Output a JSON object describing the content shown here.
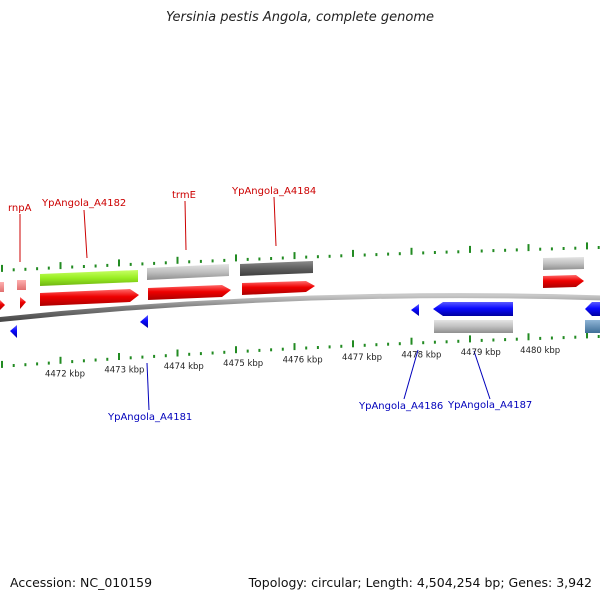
{
  "title": "Yersinia pestis Angola, complete genome",
  "footer": {
    "accession": "Accession: NC_010159",
    "summary": "Topology: circular; Length: 4,504,254 bp; Genes: 3,942"
  },
  "colors": {
    "label_top": "#cc0000",
    "label_bottom": "#0000bb",
    "tick": "#228b22",
    "backbone": "#7a7a7a",
    "cds_forward": "#ee0000",
    "cds_reverse": "#0a0aff",
    "green_box": "#99ee22",
    "gray_box": "#bdbdbd",
    "dark_box": "#5f5f5f"
  },
  "axis": {
    "unit": "kbp",
    "labels": [
      {
        "value": 4472,
        "text": "4472 kbp"
      },
      {
        "value": 4473,
        "text": "4473 kbp"
      },
      {
        "value": 4474,
        "text": "4474 kbp"
      },
      {
        "value": 4475,
        "text": "4475 kbp"
      },
      {
        "value": 4476,
        "text": "4476 kbp"
      },
      {
        "value": 4477,
        "text": "4477 kbp"
      },
      {
        "value": 4478,
        "text": "4478 kbp"
      },
      {
        "value": 4479,
        "text": "4479 kbp"
      },
      {
        "value": 4480,
        "text": "4480 kbp"
      }
    ]
  },
  "gene_labels_top": [
    {
      "text": "rnpA"
    },
    {
      "text": "YpAngola_A4182"
    },
    {
      "text": "trmE"
    },
    {
      "text": "YpAngola_A4184"
    }
  ],
  "gene_labels_bottom": [
    {
      "text": "YpAngola_A4181"
    },
    {
      "text": "YpAngola_A4186"
    },
    {
      "text": "YpAngola_A4187"
    }
  ]
}
